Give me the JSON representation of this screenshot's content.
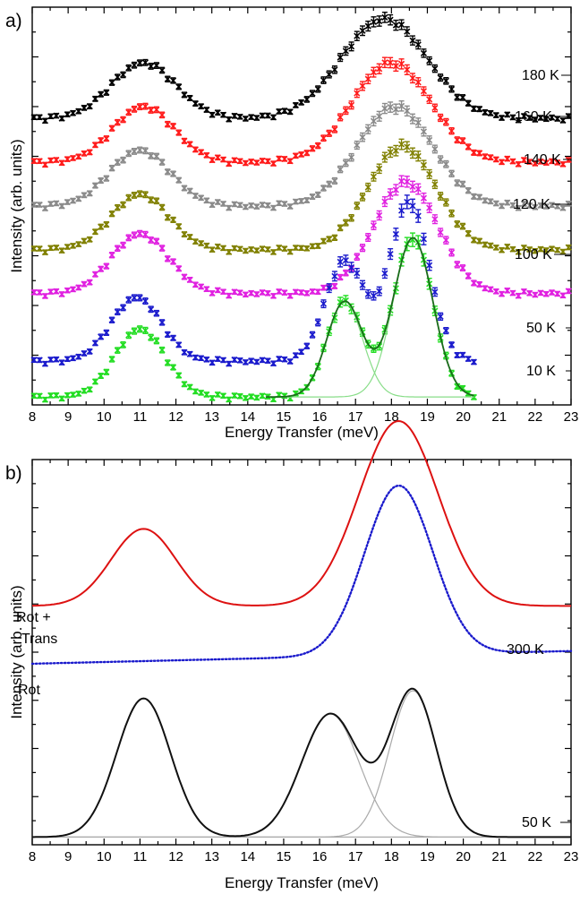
{
  "chart_data": [
    {
      "panel": "a)",
      "type": "line",
      "xlabel": "Energy Transfer (meV)",
      "ylabel": "Intensity (arb. units)",
      "xlim": [
        8,
        23
      ],
      "xticks": [
        "8",
        "9",
        "10",
        "11",
        "12",
        "13",
        "14",
        "15",
        "16",
        "17",
        "18",
        "19",
        "20",
        "21",
        "22",
        "23"
      ],
      "grid": false,
      "series": [
        {
          "name": "180 K",
          "color": "#000000",
          "marker": "cross",
          "error_bars": true,
          "baseline": 0.72,
          "x_end": 23,
          "peaks": [
            [
              11.1,
              0.14,
              0.9
            ],
            [
              17.8,
              0.25,
              1.2
            ]
          ]
        },
        {
          "name": "160 K",
          "color": "#ff1a1a",
          "marker": "cross",
          "error_bars": true,
          "baseline": 0.61,
          "x_end": 23,
          "peaks": [
            [
              11.1,
              0.14,
              0.85
            ],
            [
              18.0,
              0.25,
              1.1
            ]
          ]
        },
        {
          "name": "140 K",
          "color": "#8a8a8a",
          "marker": "cross",
          "error_bars": true,
          "baseline": 0.5,
          "x_end": 23,
          "peaks": [
            [
              11.0,
              0.14,
              0.85
            ],
            [
              18.1,
              0.25,
              1.05
            ]
          ]
        },
        {
          "name": "120 K",
          "color": "#808000",
          "marker": "cross",
          "error_bars": true,
          "baseline": 0.39,
          "x_end": 23,
          "peaks": [
            [
              11.0,
              0.14,
              0.8
            ],
            [
              18.3,
              0.26,
              0.95
            ]
          ]
        },
        {
          "name": "100 K",
          "color": "#e020e0",
          "marker": "cross",
          "error_bars": true,
          "baseline": 0.28,
          "x_end": 23,
          "peaks": [
            [
              11.0,
              0.15,
              0.8
            ],
            [
              18.4,
              0.28,
              0.9
            ]
          ]
        },
        {
          "name": "50 K",
          "color": "#1a1acc",
          "marker": "cross",
          "error_bars": true,
          "baseline": 0.11,
          "x_end": 20.3,
          "peaks": [
            [
              10.9,
              0.16,
              0.7
            ],
            [
              16.7,
              0.25,
              0.55
            ],
            [
              18.5,
              0.4,
              0.55
            ]
          ]
        },
        {
          "name": "10 K",
          "color": "#22dd22",
          "marker": "cross",
          "error_bars": true,
          "baseline": 0.02,
          "x_end": 20.3,
          "peaks": [
            [
              11.0,
              0.17,
              0.7
            ],
            [
              16.7,
              0.24,
              0.5
            ],
            [
              18.6,
              0.4,
              0.55
            ]
          ]
        }
      ],
      "fits": {
        "total_color": "#1a6b1a",
        "component_color": "#88dd88",
        "x_range": [
          14.5,
          20.3
        ],
        "baseline": 0.02,
        "components": [
          [
            16.7,
            0.24,
            0.5
          ],
          [
            18.6,
            0.4,
            0.55
          ]
        ]
      }
    },
    {
      "panel": "b)",
      "type": "line",
      "xlabel": "Energy Transfer (meV)",
      "ylabel": "Intensity (arb. units)",
      "xlim": [
        8,
        23
      ],
      "xticks": [
        "8",
        "9",
        "10",
        "11",
        "12",
        "13",
        "14",
        "15",
        "16",
        "17",
        "18",
        "19",
        "20",
        "21",
        "22",
        "23"
      ],
      "grid": false,
      "series": [
        {
          "name": "Rot + Trans",
          "curve_label": "300 K",
          "color": "#dd1111",
          "style": "solid",
          "baseline": 0.62,
          "peaks": [
            [
              11.1,
              0.2,
              0.9
            ],
            [
              18.2,
              0.48,
              1.1
            ]
          ]
        },
        {
          "name": "Rot",
          "color": "#1a1acc",
          "style": "dotted",
          "baseline": 0.47,
          "slope": 0.0022,
          "peaks": [
            [
              18.2,
              0.44,
              0.95
            ]
          ]
        },
        {
          "name": "50 K",
          "color": "#111111",
          "style": "solid",
          "baseline": 0.02,
          "peaks": [
            [
              11.1,
              0.36,
              0.75
            ],
            [
              16.3,
              0.32,
              0.8
            ],
            [
              18.6,
              0.38,
              0.65
            ]
          ]
        }
      ],
      "components": {
        "color": "#aaaaaa",
        "peaks": [
          [
            11.1,
            0.36,
            0.75
          ],
          [
            16.3,
            0.32,
            0.8
          ],
          [
            18.6,
            0.38,
            0.65
          ]
        ]
      }
    }
  ]
}
